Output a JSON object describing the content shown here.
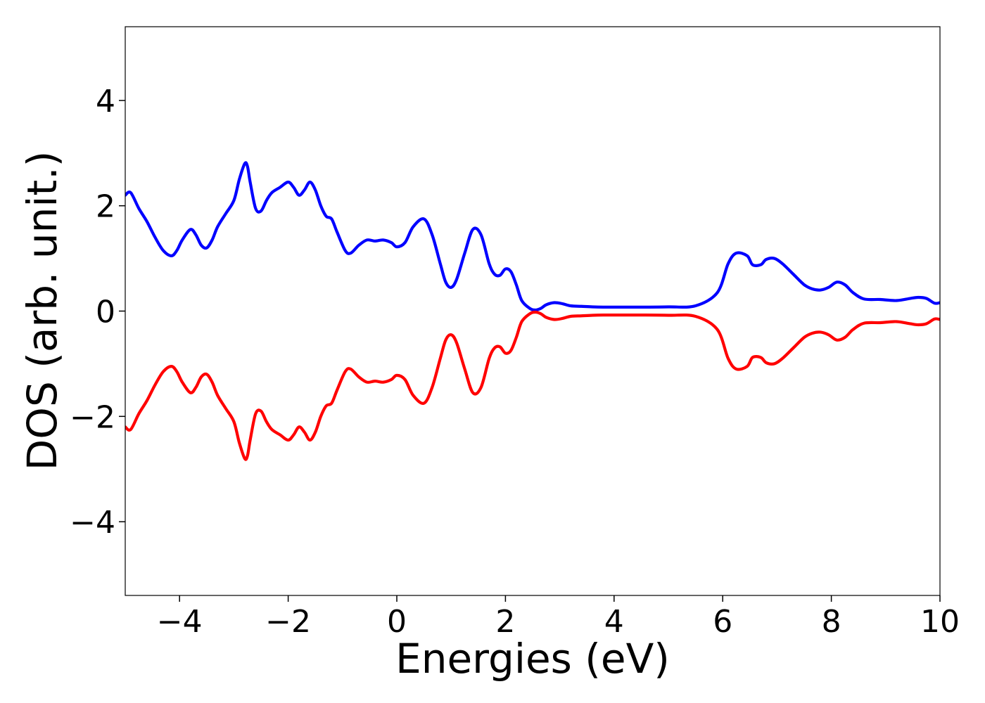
{
  "chart_data": {
    "type": "line",
    "title": "",
    "xlabel": "Energies (eV)",
    "ylabel": "DOS (arb. unit.)",
    "xlim": [
      -5,
      10
    ],
    "ylim": [
      -5.4,
      5.4
    ],
    "xticks": [
      -4,
      -2,
      0,
      2,
      4,
      6,
      8,
      10
    ],
    "yticks": [
      -4,
      -2,
      0,
      2,
      4
    ],
    "xtick_labels": [
      "−4",
      "−2",
      "0",
      "2",
      "4",
      "6",
      "8",
      "10"
    ],
    "ytick_labels": [
      "−4",
      "−2",
      "0",
      "2",
      "4"
    ],
    "grid": false,
    "legend": "none",
    "series": [
      {
        "color": "#0000ff",
        "x": [
          -5.0,
          -4.9,
          -4.75,
          -4.6,
          -4.45,
          -4.3,
          -4.15,
          -4.05,
          -3.95,
          -3.8,
          -3.7,
          -3.6,
          -3.5,
          -3.4,
          -3.3,
          -3.15,
          -3.0,
          -2.9,
          -2.8,
          -2.75,
          -2.7,
          -2.6,
          -2.5,
          -2.4,
          -2.3,
          -2.15,
          -2.0,
          -1.9,
          -1.8,
          -1.7,
          -1.6,
          -1.5,
          -1.4,
          -1.3,
          -1.2,
          -1.1,
          -0.95,
          -0.85,
          -0.7,
          -0.55,
          -0.4,
          -0.25,
          -0.1,
          0.0,
          0.15,
          0.3,
          0.5,
          0.65,
          0.8,
          0.9,
          1.0,
          1.1,
          1.25,
          1.4,
          1.55,
          1.7,
          1.8,
          1.9,
          2.0,
          2.1,
          2.2,
          2.3,
          2.45,
          2.55,
          2.65,
          2.75,
          2.9,
          3.05,
          3.2,
          3.4,
          3.6,
          3.8,
          4.0,
          4.5,
          5.0,
          5.5,
          5.9,
          6.1,
          6.25,
          6.45,
          6.55,
          6.7,
          6.8,
          6.95,
          7.1,
          7.3,
          7.5,
          7.65,
          7.8,
          7.95,
          8.1,
          8.25,
          8.4,
          8.6,
          8.9,
          9.2,
          9.45,
          9.6,
          9.75,
          9.9,
          10.0
        ],
        "y": [
          2.2,
          2.25,
          1.95,
          1.7,
          1.4,
          1.15,
          1.05,
          1.15,
          1.35,
          1.55,
          1.45,
          1.25,
          1.2,
          1.35,
          1.6,
          1.85,
          2.1,
          2.5,
          2.8,
          2.75,
          2.45,
          1.95,
          1.9,
          2.1,
          2.25,
          2.35,
          2.45,
          2.35,
          2.2,
          2.3,
          2.45,
          2.3,
          2.0,
          1.8,
          1.75,
          1.5,
          1.15,
          1.1,
          1.25,
          1.35,
          1.33,
          1.35,
          1.3,
          1.22,
          1.3,
          1.6,
          1.75,
          1.45,
          0.9,
          0.55,
          0.45,
          0.6,
          1.1,
          1.55,
          1.45,
          0.9,
          0.7,
          0.68,
          0.8,
          0.75,
          0.5,
          0.2,
          0.05,
          0.02,
          0.05,
          0.12,
          0.16,
          0.14,
          0.1,
          0.09,
          0.08,
          0.075,
          0.075,
          0.075,
          0.08,
          0.1,
          0.35,
          0.9,
          1.1,
          1.05,
          0.88,
          0.88,
          0.98,
          1.0,
          0.9,
          0.7,
          0.5,
          0.42,
          0.4,
          0.45,
          0.55,
          0.5,
          0.35,
          0.23,
          0.22,
          0.2,
          0.24,
          0.26,
          0.24,
          0.15,
          0.16
        ]
      },
      {
        "color": "#ff0000",
        "x": [
          -5.0,
          -4.9,
          -4.75,
          -4.6,
          -4.45,
          -4.3,
          -4.15,
          -4.05,
          -3.95,
          -3.8,
          -3.7,
          -3.6,
          -3.5,
          -3.4,
          -3.3,
          -3.15,
          -3.0,
          -2.9,
          -2.8,
          -2.75,
          -2.7,
          -2.6,
          -2.5,
          -2.4,
          -2.3,
          -2.15,
          -2.0,
          -1.9,
          -1.8,
          -1.7,
          -1.6,
          -1.5,
          -1.4,
          -1.3,
          -1.2,
          -1.1,
          -0.95,
          -0.85,
          -0.7,
          -0.55,
          -0.4,
          -0.25,
          -0.1,
          0.0,
          0.15,
          0.3,
          0.5,
          0.65,
          0.8,
          0.9,
          1.0,
          1.1,
          1.25,
          1.4,
          1.55,
          1.7,
          1.8,
          1.9,
          2.0,
          2.1,
          2.2,
          2.3,
          2.45,
          2.55,
          2.65,
          2.75,
          2.9,
          3.05,
          3.2,
          3.4,
          3.6,
          3.8,
          4.0,
          4.5,
          5.0,
          5.5,
          5.9,
          6.1,
          6.25,
          6.45,
          6.55,
          6.7,
          6.8,
          6.95,
          7.1,
          7.3,
          7.5,
          7.65,
          7.8,
          7.95,
          8.1,
          8.25,
          8.4,
          8.6,
          8.9,
          9.2,
          9.45,
          9.6,
          9.75,
          9.9,
          10.0
        ],
        "y": [
          -2.2,
          -2.25,
          -1.95,
          -1.7,
          -1.4,
          -1.15,
          -1.05,
          -1.15,
          -1.35,
          -1.55,
          -1.45,
          -1.25,
          -1.2,
          -1.35,
          -1.6,
          -1.85,
          -2.1,
          -2.5,
          -2.8,
          -2.75,
          -2.45,
          -1.95,
          -1.9,
          -2.1,
          -2.25,
          -2.35,
          -2.45,
          -2.35,
          -2.2,
          -2.3,
          -2.45,
          -2.3,
          -2.0,
          -1.8,
          -1.75,
          -1.5,
          -1.15,
          -1.1,
          -1.25,
          -1.35,
          -1.33,
          -1.35,
          -1.3,
          -1.22,
          -1.3,
          -1.6,
          -1.75,
          -1.45,
          -0.9,
          -0.55,
          -0.45,
          -0.6,
          -1.1,
          -1.55,
          -1.45,
          -0.9,
          -0.7,
          -0.68,
          -0.8,
          -0.75,
          -0.5,
          -0.2,
          -0.05,
          -0.02,
          -0.05,
          -0.12,
          -0.16,
          -0.14,
          -0.1,
          -0.09,
          -0.08,
          -0.075,
          -0.075,
          -0.075,
          -0.08,
          -0.1,
          -0.35,
          -0.9,
          -1.1,
          -1.05,
          -0.88,
          -0.88,
          -0.98,
          -1.0,
          -0.9,
          -0.7,
          -0.5,
          -0.42,
          -0.4,
          -0.45,
          -0.55,
          -0.5,
          -0.35,
          -0.23,
          -0.22,
          -0.2,
          -0.24,
          -0.26,
          -0.24,
          -0.15,
          -0.16
        ]
      }
    ]
  }
}
